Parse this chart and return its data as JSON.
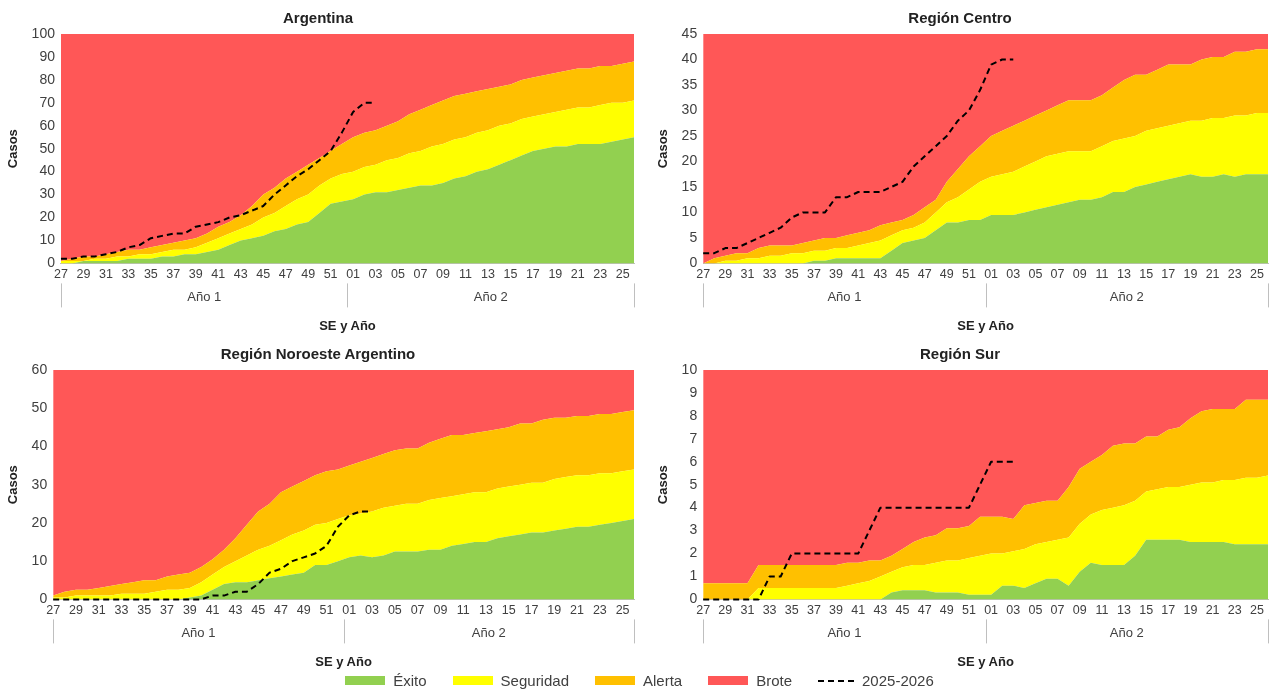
{
  "chart_data": [
    {
      "type": "area",
      "title": "Argentina",
      "xlabel": "SE y Año",
      "ylabel": "Casos",
      "stacked": true,
      "categories": [
        "27",
        null,
        "29",
        null,
        "31",
        null,
        "33",
        null,
        "35",
        null,
        "37",
        null,
        "39",
        null,
        "41",
        null,
        "43",
        null,
        "45",
        null,
        "47",
        null,
        "49",
        null,
        "51",
        null,
        "01",
        null,
        "03",
        null,
        "05",
        null,
        "07",
        null,
        "09",
        null,
        "11",
        null,
        "13",
        null,
        "15",
        null,
        "17",
        null,
        "19",
        null,
        "21",
        null,
        "23",
        null,
        "25",
        null
      ],
      "annotations": [
        "Año 1",
        "Año 2"
      ],
      "ylim": [
        0,
        100
      ],
      "yticks": [
        0,
        10,
        20,
        30,
        40,
        50,
        60,
        70,
        80,
        90,
        100
      ],
      "series": [
        {
          "color": "#92d050",
          "values": [
            0,
            0,
            1,
            1,
            1,
            1,
            2,
            2,
            2,
            3,
            3,
            4,
            4,
            5,
            6,
            8,
            10,
            11,
            12,
            14,
            15,
            17,
            18,
            22,
            26,
            27,
            28,
            30,
            31,
            31,
            32,
            33,
            34,
            34,
            35,
            37,
            38,
            40,
            41,
            43,
            45,
            47,
            49,
            50,
            51,
            51,
            52,
            52,
            52,
            53,
            54,
            55
          ]
        },
        {
          "color": "#ffff00",
          "values": [
            1,
            1,
            0,
            1,
            1,
            2,
            1,
            2,
            2,
            2,
            3,
            2,
            3,
            4,
            5,
            5,
            5,
            6,
            8,
            8,
            10,
            11,
            12,
            12,
            11,
            12,
            12,
            12,
            12,
            14,
            14,
            15,
            15,
            17,
            17,
            17,
            17,
            17,
            17,
            17,
            16,
            16,
            15,
            15,
            15,
            16,
            16,
            16,
            17,
            17,
            16,
            16
          ]
        },
        {
          "color": "#ffc000",
          "values": [
            0,
            1,
            2,
            1,
            2,
            2,
            3,
            2,
            3,
            3,
            3,
            4,
            4,
            4,
            5,
            5,
            6,
            8,
            10,
            11,
            12,
            12,
            13,
            12,
            12,
            13,
            15,
            15,
            15,
            15,
            16,
            17,
            18,
            18,
            19,
            19,
            19,
            18,
            18,
            17,
            17,
            17,
            17,
            17,
            17,
            17,
            17,
            17,
            17,
            16,
            17,
            17
          ]
        },
        {
          "color": "#ff5757",
          "values": [
            99,
            98,
            97,
            97,
            96,
            95,
            94,
            94,
            93,
            92,
            91,
            90,
            89,
            87,
            84,
            82,
            79,
            75,
            70,
            67,
            63,
            60,
            57,
            54,
            51,
            48,
            45,
            43,
            42,
            40,
            38,
            35,
            33,
            31,
            29,
            27,
            26,
            25,
            24,
            23,
            22,
            20,
            19,
            18,
            17,
            16,
            15,
            15,
            14,
            14,
            13,
            12
          ]
        },
        {
          "type": "line",
          "line_style": "dashed",
          "color": "#000000",
          "values": [
            2,
            2,
            3,
            3,
            4,
            5,
            7,
            8,
            11,
            12,
            13,
            13,
            16,
            17,
            18,
            20,
            21,
            23,
            25,
            30,
            34,
            38,
            41,
            45,
            49,
            57,
            66,
            70,
            70,
            null,
            null,
            null,
            null,
            null,
            null,
            null,
            null,
            null,
            null,
            null,
            null,
            null,
            null,
            null,
            null,
            null,
            null,
            null,
            null,
            null,
            null,
            null
          ]
        }
      ]
    },
    {
      "type": "area",
      "title": "Región Centro",
      "xlabel": "SE y Año",
      "ylabel": "Casos",
      "stacked": true,
      "categories": [
        "27",
        null,
        "29",
        null,
        "31",
        null,
        "33",
        null,
        "35",
        null,
        "37",
        null,
        "39",
        null,
        "41",
        null,
        "43",
        null,
        "45",
        null,
        "47",
        null,
        "49",
        null,
        "51",
        null,
        "01",
        null,
        "03",
        null,
        "05",
        null,
        "07",
        null,
        "09",
        null,
        "11",
        null,
        "13",
        null,
        "15",
        null,
        "17",
        null,
        "19",
        null,
        "21",
        null,
        "23",
        null,
        "25",
        null
      ],
      "annotations": [
        "Año 1",
        "Año 2"
      ],
      "ylim": [
        0,
        45
      ],
      "yticks": [
        0,
        5,
        10,
        15,
        20,
        25,
        30,
        35,
        40,
        45
      ],
      "series": [
        {
          "color": "#92d050",
          "values": [
            0,
            0,
            0,
            0,
            0,
            0,
            0,
            0,
            0,
            0,
            0.5,
            0.5,
            1,
            1,
            1,
            1,
            1,
            2.5,
            4,
            4.5,
            5,
            6.5,
            8,
            8,
            8.5,
            8.5,
            9.5,
            9.5,
            9.5,
            10,
            10.5,
            11,
            11.5,
            12,
            12.5,
            12.5,
            13,
            14,
            14,
            15,
            15.5,
            16,
            16.5,
            17,
            17.5,
            17,
            17,
            17.5,
            17,
            17.5,
            17.5,
            17.5
          ]
        },
        {
          "color": "#ffff00",
          "values": [
            0,
            0,
            0.5,
            0.5,
            1,
            1,
            1.5,
            1.5,
            2,
            2,
            2,
            2,
            2,
            2,
            2.5,
            3,
            3.5,
            3,
            2.5,
            2.5,
            3,
            3.5,
            4,
            5,
            6,
            7.5,
            7.5,
            8,
            8.5,
            9,
            9.5,
            10,
            10,
            10,
            9.5,
            9.5,
            10,
            10,
            10.5,
            10,
            10.5,
            10.5,
            10.5,
            10.5,
            10.5,
            11,
            11.5,
            11,
            12,
            11.5,
            12,
            12
          ]
        },
        {
          "color": "#ffc000",
          "values": [
            0,
            1,
            1,
            1.5,
            1,
            2,
            2,
            2,
            1.5,
            2,
            2,
            2.5,
            2,
            2.5,
            2.5,
            2.5,
            3,
            2.5,
            2,
            2.5,
            3,
            2.5,
            4,
            5.5,
            6.5,
            7,
            8,
            8.5,
            9,
            9,
            9,
            9,
            9.5,
            10,
            10,
            10,
            10,
            10.5,
            11.5,
            12,
            11,
            11.5,
            12,
            11.5,
            11,
            12,
            12,
            12,
            12.5,
            12.5,
            12.5,
            12.5
          ]
        },
        {
          "color": "#ff5757",
          "values": [
            45,
            44,
            43.5,
            43,
            43,
            42,
            41.5,
            41.5,
            41.5,
            41,
            40.5,
            40,
            40,
            39.5,
            39,
            38.5,
            37.5,
            37,
            36.5,
            35.5,
            34,
            32.5,
            29,
            26.5,
            24,
            22,
            20,
            19,
            18,
            17,
            16,
            15,
            14,
            13,
            13,
            13,
            12,
            10.5,
            9,
            8,
            8,
            7,
            6,
            6,
            6,
            5,
            4.5,
            4.5,
            3.5,
            3.5,
            3,
            3
          ]
        },
        {
          "type": "line",
          "line_style": "dashed",
          "color": "#000000",
          "values": [
            2,
            2,
            3,
            3,
            4,
            5,
            6,
            7,
            9,
            10,
            10,
            10,
            13,
            13,
            14,
            14,
            14,
            15,
            16,
            19,
            21,
            23,
            25,
            28,
            30,
            34,
            39,
            40,
            40,
            null,
            null,
            null,
            null,
            null,
            null,
            null,
            null,
            null,
            null,
            null,
            null,
            null,
            null,
            null,
            null,
            null,
            null,
            null,
            null,
            null,
            null,
            null
          ]
        }
      ]
    },
    {
      "type": "area",
      "title": "Región Noroeste Argentino",
      "xlabel": "SE y Año",
      "ylabel": "Casos",
      "stacked": true,
      "categories": [
        "27",
        null,
        "29",
        null,
        "31",
        null,
        "33",
        null,
        "35",
        null,
        "37",
        null,
        "39",
        null,
        "41",
        null,
        "43",
        null,
        "45",
        null,
        "47",
        null,
        "49",
        null,
        "51",
        null,
        "01",
        null,
        "03",
        null,
        "05",
        null,
        "07",
        null,
        "09",
        null,
        "11",
        null,
        "13",
        null,
        "15",
        null,
        "17",
        null,
        "19",
        null,
        "21",
        null,
        "23",
        null,
        "25",
        null
      ],
      "annotations": [
        "Año 1",
        "Año 2"
      ],
      "ylim": [
        0,
        60
      ],
      "yticks": [
        0,
        10,
        20,
        30,
        40,
        50,
        60
      ],
      "series": [
        {
          "color": "#92d050",
          "values": [
            0,
            0,
            0,
            0,
            0,
            0,
            0,
            0,
            0,
            0,
            0,
            0,
            0.5,
            1,
            2.5,
            4,
            4.5,
            4.5,
            5,
            5.5,
            6,
            6.5,
            7,
            9,
            9,
            10,
            11,
            11.5,
            11,
            11.5,
            12.5,
            12.5,
            12.5,
            13,
            13,
            14,
            14.5,
            15,
            15,
            16,
            16.5,
            17,
            17.5,
            17.5,
            18,
            18.5,
            19,
            19,
            19.5,
            20,
            20.5,
            21
          ]
        },
        {
          "color": "#ffff00",
          "values": [
            0.5,
            0.5,
            1,
            1,
            1,
            1,
            1.5,
            1.5,
            1.5,
            2,
            2.5,
            2.5,
            2.5,
            3.5,
            4,
            4.5,
            5.5,
            7,
            8,
            8.5,
            9.5,
            10.5,
            11,
            10.5,
            11,
            11,
            11,
            11,
            12,
            12.5,
            12,
            12.5,
            12.5,
            13,
            13.5,
            13,
            13,
            13,
            13,
            13,
            13,
            13,
            13,
            13,
            13.5,
            13.5,
            13.5,
            13.5,
            13.5,
            13,
            13,
            13
          ]
        },
        {
          "color": "#ffc000",
          "values": [
            0.5,
            1.5,
            1.5,
            1.5,
            2,
            2.5,
            2.5,
            3,
            3.5,
            3,
            3.5,
            4,
            4,
            4,
            4,
            4.5,
            6,
            8,
            10,
            11,
            12.5,
            12.5,
            13,
            13,
            13.5,
            13,
            13,
            13.5,
            14,
            14,
            14.5,
            14.5,
            14.5,
            15,
            15.5,
            16,
            15.5,
            15.5,
            16,
            15.5,
            15.5,
            16,
            15.5,
            16.5,
            16,
            15.5,
            15.5,
            15.5,
            15.5,
            15.5,
            15.5,
            15.5
          ]
        },
        {
          "color": "#ff5757",
          "values": [
            59,
            58,
            57.5,
            57.5,
            57,
            56.5,
            56,
            55.5,
            55,
            55,
            54,
            53.5,
            53,
            51.5,
            49.5,
            47,
            44,
            40.5,
            37,
            35,
            32,
            30.5,
            29,
            27.5,
            26.5,
            26,
            25,
            24,
            23,
            22,
            21,
            20.5,
            20.5,
            19,
            18,
            17,
            17,
            16.5,
            16,
            15.5,
            15,
            14,
            14,
            13,
            12.5,
            12.5,
            12,
            12,
            11.5,
            11.5,
            11,
            10.5
          ]
        },
        {
          "type": "line",
          "line_style": "dashed",
          "color": "#000000",
          "values": [
            0,
            0,
            0,
            0,
            0,
            0,
            0,
            0,
            0,
            0,
            0,
            0,
            0,
            0,
            1,
            1,
            2,
            2,
            4,
            7,
            8,
            10,
            11,
            12,
            14,
            19,
            22,
            23,
            23,
            null,
            null,
            null,
            null,
            null,
            null,
            null,
            null,
            null,
            null,
            null,
            null,
            null,
            null,
            null,
            null,
            null,
            null,
            null,
            null,
            null,
            null,
            null
          ]
        }
      ]
    },
    {
      "type": "area",
      "title": "Región Sur",
      "xlabel": "SE y Año",
      "ylabel": "Casos",
      "stacked": true,
      "legend": "bottom",
      "categories": [
        "27",
        null,
        "29",
        null,
        "31",
        null,
        "33",
        null,
        "35",
        null,
        "37",
        null,
        "39",
        null,
        "41",
        null,
        "43",
        null,
        "45",
        null,
        "47",
        null,
        "49",
        null,
        "51",
        null,
        "01",
        null,
        "03",
        null,
        "05",
        null,
        "07",
        null,
        "09",
        null,
        "11",
        null,
        "13",
        null,
        "15",
        null,
        "17",
        null,
        "19",
        null,
        "21",
        null,
        "23",
        null,
        "25",
        null
      ],
      "annotations": [
        "Año 1",
        "Año 2"
      ],
      "ylim": [
        0,
        10
      ],
      "yticks": [
        0,
        1,
        2,
        3,
        4,
        5,
        6,
        7,
        8,
        9,
        10
      ],
      "series": [
        {
          "name": "Éxito",
          "color": "#92d050",
          "values": [
            0,
            0,
            0,
            0,
            0,
            0,
            0,
            0,
            0,
            0,
            0,
            0,
            0,
            0,
            0,
            0,
            0,
            0.3,
            0.4,
            0.4,
            0.4,
            0.3,
            0.3,
            0.3,
            0.2,
            0.2,
            0.2,
            0.6,
            0.6,
            0.5,
            0.7,
            0.9,
            0.9,
            0.6,
            1.2,
            1.6,
            1.5,
            1.5,
            1.5,
            1.9,
            2.6,
            2.6,
            2.6,
            2.6,
            2.5,
            2.5,
            2.5,
            2.5,
            2.4,
            2.4,
            2.4,
            2.4
          ]
        },
        {
          "name": "Seguridad",
          "color": "#ffff00",
          "values": [
            0,
            0,
            0,
            0,
            0,
            0.5,
            0.5,
            0.5,
            0.5,
            0.5,
            0.5,
            0.5,
            0.5,
            0.6,
            0.7,
            0.8,
            1,
            0.9,
            1,
            1.1,
            1.1,
            1.3,
            1.4,
            1.4,
            1.6,
            1.7,
            1.8,
            1.4,
            1.5,
            1.7,
            1.7,
            1.6,
            1.7,
            2.1,
            2.1,
            2.1,
            2.4,
            2.5,
            2.6,
            2.4,
            2.1,
            2.2,
            2.3,
            2.3,
            2.5,
            2.6,
            2.6,
            2.7,
            2.8,
            2.9,
            2.9,
            3
          ]
        },
        {
          "name": "Alerta",
          "color": "#ffc000",
          "values": [
            0.7,
            0.7,
            0.7,
            0.7,
            0.7,
            1,
            1,
            1,
            1,
            1,
            1,
            1,
            1,
            1,
            0.9,
            0.9,
            0.7,
            0.7,
            0.8,
            1,
            1.2,
            1.2,
            1.4,
            1.4,
            1.4,
            1.7,
            1.6,
            1.6,
            1.4,
            1.9,
            1.8,
            1.8,
            1.7,
            2.2,
            2.4,
            2.3,
            2.4,
            2.7,
            2.7,
            2.5,
            2.4,
            2.3,
            2.5,
            2.6,
            2.9,
            3.1,
            3.2,
            3.1,
            3.1,
            3.4,
            3.4,
            3.3
          ]
        },
        {
          "name": "Brote",
          "color": "#ff5757",
          "values": [
            9.3,
            9.3,
            9.3,
            9.3,
            9.3,
            8.5,
            8.5,
            8.5,
            8.5,
            8.5,
            8.5,
            8.5,
            8.5,
            8.4,
            8.4,
            8.3,
            8.3,
            8.1,
            7.8,
            7.5,
            7.3,
            7.2,
            6.9,
            6.9,
            6.8,
            6.4,
            6.4,
            6.4,
            6.5,
            5.9,
            5.8,
            5.7,
            5.7,
            5.1,
            4.3,
            4,
            3.7,
            3.3,
            3.2,
            3.2,
            2.9,
            2.9,
            2.6,
            2.5,
            2.1,
            1.8,
            1.7,
            1.7,
            1.7,
            1.3,
            1.3,
            1.3
          ]
        },
        {
          "name": "2025-2026",
          "type": "line",
          "line_style": "dashed",
          "color": "#000000",
          "values": [
            0,
            0,
            0,
            0,
            0,
            0,
            1,
            1,
            2,
            2,
            2,
            2,
            2,
            2,
            2,
            3,
            4,
            4,
            4,
            4,
            4,
            4,
            4,
            4,
            4,
            5,
            6,
            6,
            6,
            null,
            null,
            null,
            null,
            null,
            null,
            null,
            null,
            null,
            null,
            null,
            null,
            null,
            null,
            null,
            null,
            null,
            null,
            null,
            null,
            null,
            null,
            null
          ]
        }
      ]
    }
  ]
}
